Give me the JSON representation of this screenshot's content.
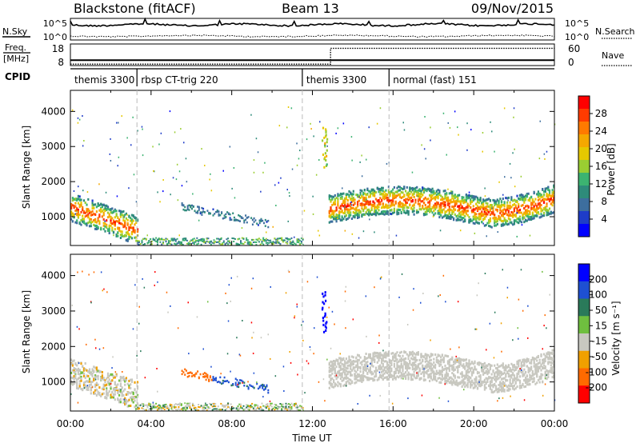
{
  "header": {
    "station": "Blackstone (fitACF)",
    "beam": "Beam 13",
    "date": "09/Nov/2015"
  },
  "noise_panel": {
    "left_label": "N.Sky",
    "right_label": "N.Search",
    "left_ticks": [
      "10^5",
      "10^0"
    ],
    "right_ticks": [
      "10^5",
      "10^0"
    ]
  },
  "freq_panel": {
    "left_label_line1": "Freq.",
    "left_label_line2": "[MHz]",
    "right_label": "Nave",
    "left_ticks": [
      "18",
      "8"
    ],
    "right_ticks": [
      "60",
      "0"
    ],
    "freq_mhz": [
      [
        0,
        10.5
      ],
      [
        24,
        10.5
      ]
    ],
    "nave": [
      [
        0,
        4
      ],
      [
        12.9,
        4
      ],
      [
        12.9,
        48
      ],
      [
        24,
        48
      ]
    ]
  },
  "cpid_panel": {
    "label": "CPID",
    "segments": [
      {
        "start": 0.0,
        "end": 3.3,
        "text": "themis 3300"
      },
      {
        "start": 3.3,
        "end": 11.5,
        "text": "rbsp CT-trig 220"
      },
      {
        "start": 11.5,
        "end": 15.8,
        "text": "themis 3300"
      },
      {
        "start": 15.8,
        "end": 24.0,
        "text": "normal (fast) 151"
      }
    ]
  },
  "colorbars": {
    "power": {
      "title": "Power [dB]",
      "ticks": [
        "28",
        "24",
        "20",
        "16",
        "12",
        "8",
        "4"
      ],
      "colors": [
        "#ff0000",
        "#ff3b00",
        "#ff7a00",
        "#f5a800",
        "#e6c800",
        "#9acd32",
        "#3cb371",
        "#2e8b7a",
        "#3d6e9e",
        "#1e3cc8",
        "#0000ff"
      ]
    },
    "velocity": {
      "title": "Velocity [m s⁻¹]",
      "ticks": [
        "200",
        "100",
        "50",
        "15",
        "-15",
        "-50",
        "-100",
        "-200"
      ],
      "colors": [
        "#0000ff",
        "#1e50d2",
        "#2a7a5a",
        "#6fbf3f",
        "#c8c8c0",
        "#f0a000",
        "#ff6a00",
        "#ff0000"
      ]
    }
  },
  "axes": {
    "ylabel": "Slant Range [km]",
    "xlabel": "Time UT",
    "yticks": [
      "1000",
      "2000",
      "3000",
      "4000"
    ],
    "xticks": [
      "00:00",
      "04:00",
      "08:00",
      "12:00",
      "16:00",
      "20:00",
      "00:00"
    ]
  },
  "chart_data": [
    {
      "type": "heatmap",
      "title": "Power [dB]",
      "xlabel": "",
      "ylabel": "Slant Range [km]",
      "xlim": [
        0,
        24
      ],
      "ylim": [
        180,
        4600
      ],
      "zlim": [
        0,
        30
      ],
      "features": [
        {
          "t_start": 1.5,
          "t_end": 3.2,
          "r_center": 600,
          "r_half_width": 250,
          "power": 24
        },
        {
          "t_start": 0.0,
          "t_end": 1.2,
          "r_center": 1300,
          "r_half_width": 300,
          "power": 22
        },
        {
          "t_start": 12.8,
          "t_end": 24.0,
          "r_center": 1300,
          "r_half_width": 300,
          "power": 25
        },
        {
          "t_start": 3.3,
          "t_end": 11.5,
          "r_center": 350,
          "r_half_width": 150,
          "power": 10
        },
        {
          "t_start": 5.5,
          "t_end": 9.5,
          "r_center": 1100,
          "r_half_width": 150,
          "power": 6
        }
      ]
    },
    {
      "type": "heatmap",
      "title": "Velocity [m s⁻¹]",
      "xlabel": "Time UT",
      "ylabel": "Slant Range [km]",
      "xlim": [
        0,
        24
      ],
      "ylim": [
        180,
        4600
      ],
      "zlim": [
        -200,
        200
      ],
      "features": [
        {
          "t_start": 0.0,
          "t_end": 3.2,
          "r_center": 1100,
          "r_half_width": 400,
          "velocity": 0
        },
        {
          "t_start": 12.8,
          "t_end": 24.0,
          "r_center": 1500,
          "r_half_width": 400,
          "velocity": 0
        },
        {
          "t_start": 12.4,
          "t_end": 12.7,
          "r_center": 3000,
          "r_half_width": 500,
          "velocity": 220
        },
        {
          "t_start": 0.8,
          "t_end": 1.2,
          "r_center": 1800,
          "r_half_width": 200,
          "velocity": -220
        },
        {
          "t_start": 3.3,
          "t_end": 11.5,
          "r_center": 350,
          "r_half_width": 150,
          "velocity": -30
        }
      ]
    }
  ]
}
